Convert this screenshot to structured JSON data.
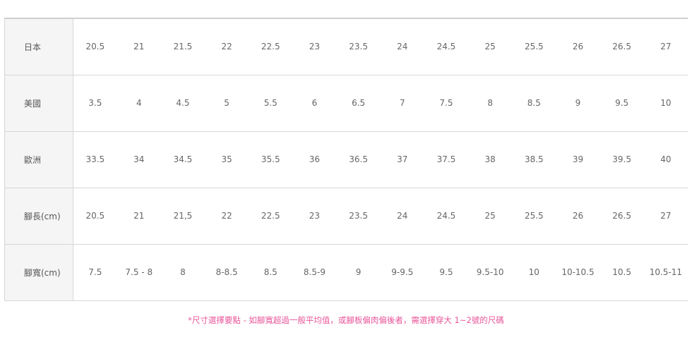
{
  "table": {
    "rows": [
      {
        "label": "日本",
        "values": [
          "20.5",
          "21",
          "21.5",
          "22",
          "22.5",
          "23",
          "23.5",
          "24",
          "24.5",
          "25",
          "25.5",
          "26",
          "26.5",
          "27"
        ]
      },
      {
        "label": "美國",
        "values": [
          "3.5",
          "4",
          "4.5",
          "5",
          "5.5",
          "6",
          "6.5",
          "7",
          "7.5",
          "8",
          "8.5",
          "9",
          "9.5",
          "10"
        ]
      },
      {
        "label": "歐洲",
        "values": [
          "33.5",
          "34",
          "34.5",
          "35",
          "35.5",
          "36",
          "36.5",
          "37",
          "37.5",
          "38",
          "38.5",
          "39",
          "39.5",
          "40"
        ]
      },
      {
        "label": "腳長(cm)",
        "values": [
          "20.5",
          "21",
          "21,5",
          "22",
          "22.5",
          "23",
          "23.5",
          "24",
          "24.5",
          "25",
          "25.5",
          "26",
          "26.5",
          "27"
        ]
      },
      {
        "label": "腳寬(cm)",
        "values": [
          "7.5",
          "7.5 - 8",
          "8",
          "8-8.5",
          "8.5",
          "8.5-9",
          "9",
          "9-9.5",
          "9.5",
          "9.5-10",
          "10",
          "10-10.5",
          "10.5",
          "10.5-11"
        ]
      }
    ]
  },
  "footnote": "*尺寸選擇要點 - 如腳寬超過一般平均值，或腳板偏肉偏後者，需選擇穿大 1~2號的尺碼",
  "colors": {
    "footnote": "#e8569a",
    "header_bg": "#f5f5f5",
    "border": "#d6d6d6"
  }
}
